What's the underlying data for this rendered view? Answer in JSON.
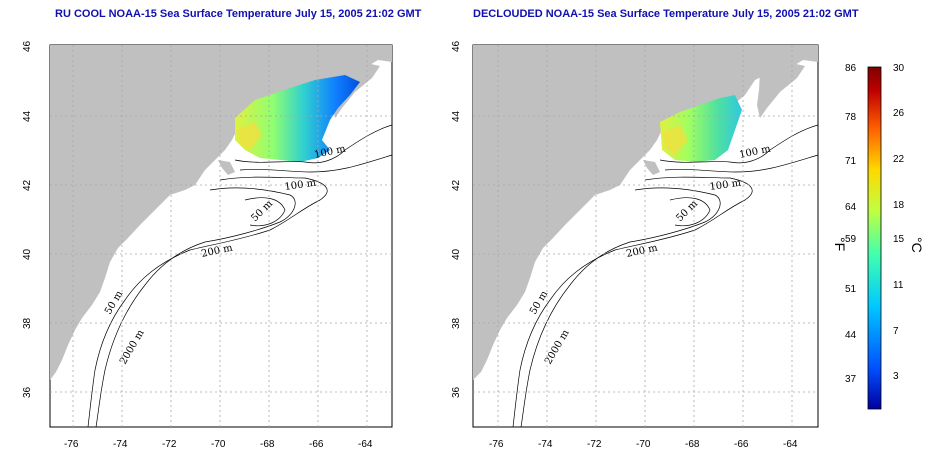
{
  "panels": [
    {
      "title": "RU COOL NOAA-15 Sea Surface Temperature July 15, 2005 21:02 GMT",
      "contour_labels": [
        "100 m",
        "100 m",
        "50 m",
        "200 m",
        "50 m",
        "2000 m"
      ]
    },
    {
      "title": "DECLOUDED NOAA-15 Sea Surface Temperature July 15, 2005 21:02 GMT",
      "contour_labels": [
        "100 m",
        "100 m",
        "50 m",
        "200 m",
        "50 m",
        "2000 m"
      ]
    }
  ],
  "axes": {
    "x_ticks": [
      "-76",
      "-74",
      "-72",
      "-70",
      "-68",
      "-66",
      "-64"
    ],
    "y_ticks": [
      "46",
      "44",
      "42",
      "40",
      "38",
      "36"
    ]
  },
  "colorbar": {
    "fahrenheit_ticks": [
      "86",
      "78",
      "71",
      "64",
      "59",
      "51",
      "44",
      "37"
    ],
    "celsius_ticks": [
      "30",
      "26",
      "22",
      "18",
      "15",
      "11",
      "7",
      "3"
    ],
    "fahrenheit_unit": "°F",
    "celsius_unit": "°C",
    "colors": [
      "#0000a0",
      "#0050ff",
      "#00c8ff",
      "#40ffb0",
      "#c0ff40",
      "#ffd800",
      "#ff6000",
      "#c00000",
      "#800000"
    ]
  },
  "colors": {
    "land": "#c0c0c0",
    "ocean": "#ffffff",
    "grid": "#a8a8a8",
    "title": "#1010b0"
  }
}
